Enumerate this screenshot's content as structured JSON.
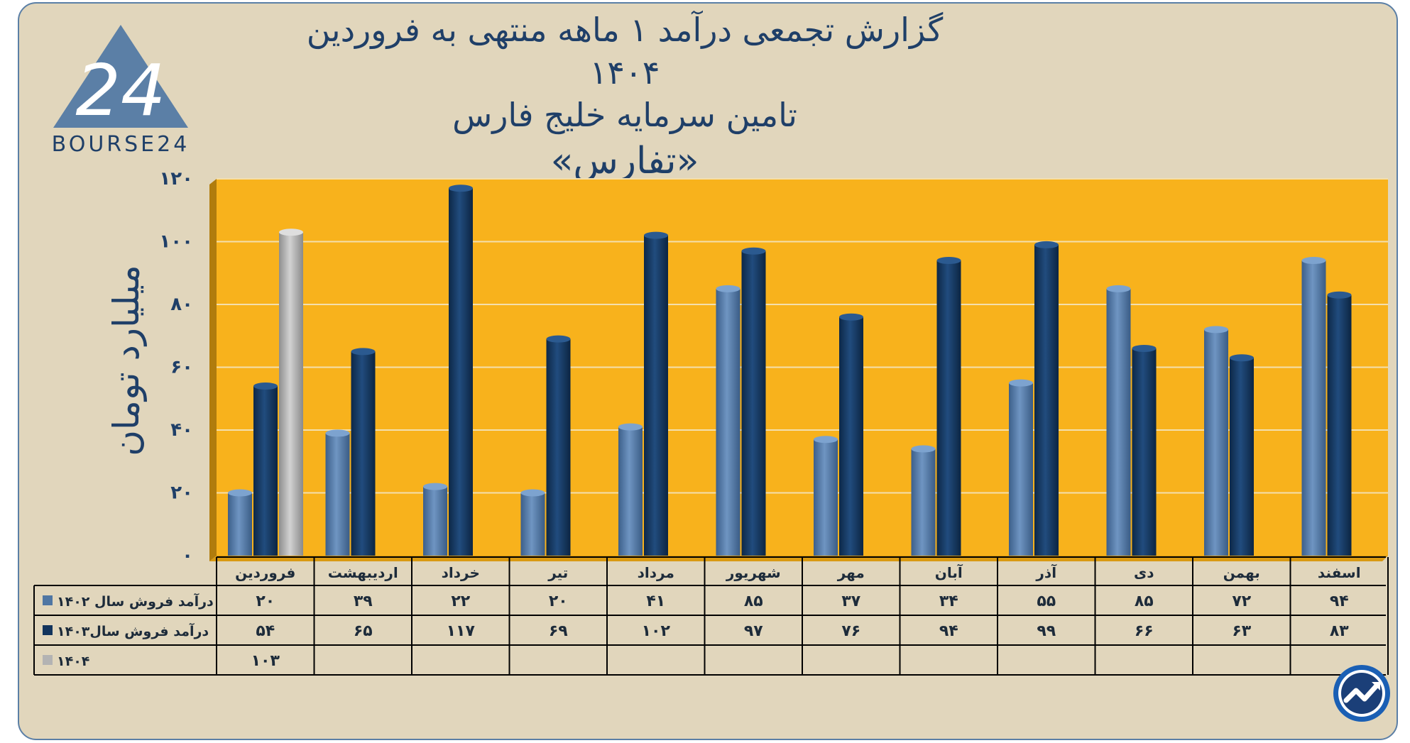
{
  "header": {
    "title_line1": "گزارش تجمعی درآمد ۱ ماهه منتهی به فروردین ۱۴۰۴",
    "title_line2": "تامین سرمایه خلیج فارس",
    "title_line3": "«تفارس»"
  },
  "logo": {
    "text": "BOURSE24",
    "mark": "24",
    "icon": "bourse24-triangle-logo"
  },
  "corner_icon": "trend-arrow-circle-icon",
  "colors": {
    "background": "#e1d6bc",
    "plot_area": "#f8b21c",
    "series_1402": "#4f76a3",
    "series_1403": "#12345d",
    "series_1404": "#b3b3b3",
    "text": "#1f3f68"
  },
  "chart_data": {
    "type": "bar",
    "ylabel": "میلیارد تومان",
    "ylim": [
      0,
      120
    ],
    "yticks": [
      "۰",
      "۲۰",
      "۴۰",
      "۶۰",
      "۸۰",
      "۱۰۰",
      "۱۲۰"
    ],
    "ytick_values": [
      0,
      20,
      40,
      60,
      80,
      100,
      120
    ],
    "grid": true,
    "categories": [
      "فروردین",
      "اردیبهشت",
      "خرداد",
      "تیر",
      "مرداد",
      "شهریور",
      "مهر",
      "آبان",
      "آذر",
      "دی",
      "بهمن",
      "اسفند"
    ],
    "series": [
      {
        "name": "درآمد فروش سال ۱۴۰۲",
        "values": [
          20,
          39,
          22,
          20,
          41,
          85,
          37,
          34,
          55,
          85,
          72,
          94
        ],
        "labels": [
          "۲۰",
          "۳۹",
          "۲۲",
          "۲۰",
          "۴۱",
          "۸۵",
          "۳۷",
          "۳۴",
          "۵۵",
          "۸۵",
          "۷۲",
          "۹۴"
        ]
      },
      {
        "name": "درآمد فروش سال۱۴۰۳",
        "values": [
          54,
          65,
          117,
          69,
          102,
          97,
          76,
          94,
          99,
          66,
          63,
          83
        ],
        "labels": [
          "۵۴",
          "۶۵",
          "۱۱۷",
          "۶۹",
          "۱۰۲",
          "۹۷",
          "۷۶",
          "۹۴",
          "۹۹",
          "۶۶",
          "۶۳",
          "۸۳"
        ]
      },
      {
        "name": "۱۴۰۴",
        "values": [
          103,
          null,
          null,
          null,
          null,
          null,
          null,
          null,
          null,
          null,
          null,
          null
        ],
        "labels": [
          "۱۰۳",
          "",
          "",
          "",
          "",
          "",
          "",
          "",
          "",
          "",
          "",
          ""
        ]
      }
    ]
  }
}
